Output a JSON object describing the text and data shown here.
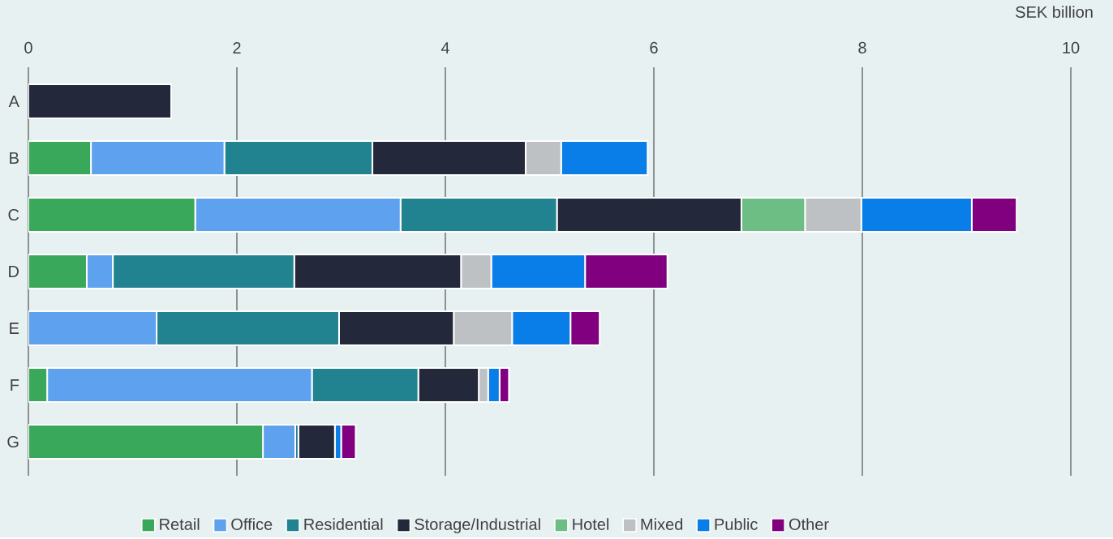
{
  "chart_data": {
    "type": "bar",
    "orientation": "horizontal",
    "stacked": true,
    "xlabel": "SEK billion",
    "categories": [
      "A",
      "B",
      "C",
      "D",
      "E",
      "F",
      "G"
    ],
    "series": [
      {
        "name": "Retail",
        "color": "#3aa85a",
        "values": [
          null,
          0.6,
          1.6,
          0.56,
          null,
          0.18,
          2.25
        ]
      },
      {
        "name": "Office",
        "color": "#5ea1ee",
        "values": [
          null,
          1.28,
          1.97,
          0.25,
          1.23,
          2.54,
          0.31
        ]
      },
      {
        "name": "Residential",
        "color": "#218290",
        "values": [
          null,
          1.42,
          1.5,
          1.74,
          1.75,
          1.02,
          0.03
        ]
      },
      {
        "name": "Storage/Industrial",
        "color": "#24283b",
        "values": [
          1.37,
          1.47,
          1.77,
          1.6,
          1.1,
          0.58,
          0.35
        ]
      },
      {
        "name": "Hotel",
        "color": "#6cbe84",
        "values": [
          null,
          null,
          0.61,
          null,
          null,
          null,
          null
        ]
      },
      {
        "name": "Mixed",
        "color": "#bdc1c4",
        "values": [
          null,
          0.34,
          0.54,
          0.29,
          0.56,
          0.09,
          null
        ]
      },
      {
        "name": "Public",
        "color": "#097de8",
        "values": [
          null,
          0.83,
          1.06,
          0.9,
          0.56,
          0.11,
          0.06
        ]
      },
      {
        "name": "Other",
        "color": "#800080",
        "values": [
          null,
          null,
          0.43,
          0.79,
          0.28,
          0.09,
          0.14
        ]
      }
    ],
    "xlim": [
      0,
      10
    ],
    "xticks": [
      0,
      2,
      4,
      6,
      8,
      10
    ],
    "grid": "x",
    "legend": "bottom"
  }
}
